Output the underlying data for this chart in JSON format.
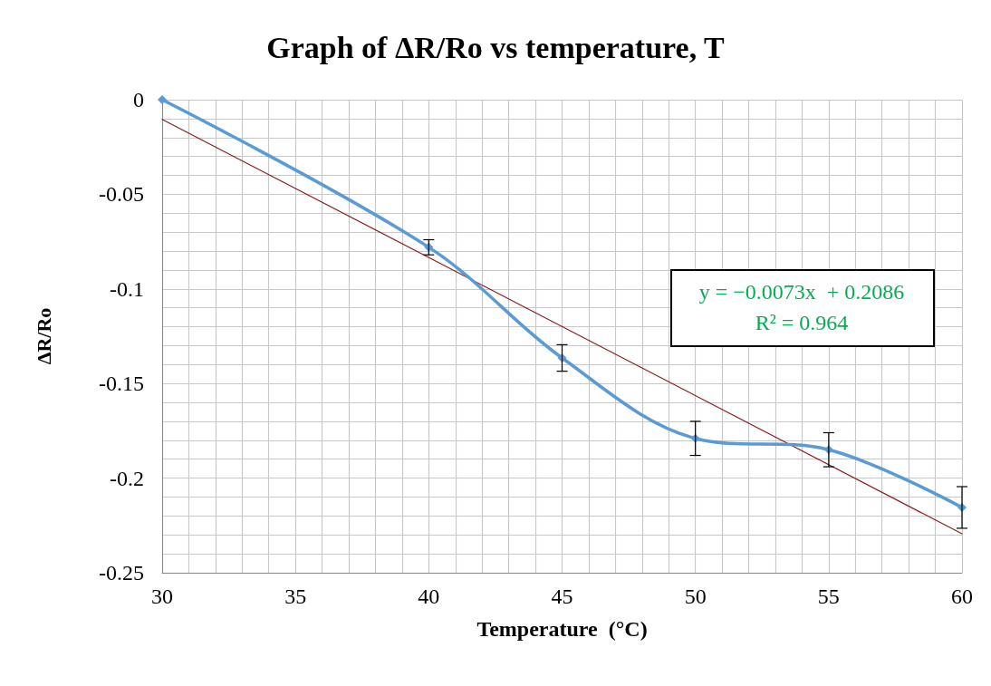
{
  "chart_data": {
    "type": "line",
    "title": "Graph of ΔR/Ro vs temperature, T",
    "xlabel": "Temperature  (°C)",
    "ylabel": "ΔR/Ro",
    "annotations": [
      "y = −0.0073x  + 0.2086",
      "R² = 0.964"
    ],
    "series": [
      {
        "color": "#5b9bd5",
        "x": [
          30,
          40,
          45,
          50,
          55,
          60
        ],
        "values": [
          0,
          -0.078,
          -0.1365,
          -0.179,
          -0.185,
          -0.2155
        ],
        "errors": [
          null,
          0.004,
          0.007,
          0.009,
          0.009,
          0.011
        ],
        "marker": "diamond"
      },
      {
        "type": "line",
        "color": "#8b1a1a",
        "x": [
          30,
          60
        ],
        "values": [
          -0.0104,
          -0.2294
        ],
        "marker": "none"
      }
    ],
    "xlim": [
      30,
      60
    ],
    "xticks": [
      30,
      {
        "value": 31,
        "label": null
      },
      {
        "value": 32,
        "label": null
      },
      {
        "value": 33,
        "label": null
      },
      {
        "value": 34,
        "label": null
      },
      35,
      {
        "value": 36,
        "label": null
      },
      {
        "value": 37,
        "label": null
      },
      {
        "value": 38,
        "label": null
      },
      {
        "value": 39,
        "label": null
      },
      40,
      {
        "value": 41,
        "label": null
      },
      {
        "value": 42,
        "label": null
      },
      {
        "value": 43,
        "label": null
      },
      {
        "value": 44,
        "label": null
      },
      45,
      {
        "value": 46,
        "label": null
      },
      {
        "value": 47,
        "label": null
      },
      {
        "value": 48,
        "label": null
      },
      {
        "value": 49,
        "label": null
      },
      50,
      {
        "value": 51,
        "label": null
      },
      {
        "value": 52,
        "label": null
      },
      {
        "value": 53,
        "label": null
      },
      {
        "value": 54,
        "label": null
      },
      55,
      {
        "value": 56,
        "label": null
      },
      {
        "value": 57,
        "label": null
      },
      {
        "value": 58,
        "label": null
      },
      {
        "value": 59,
        "label": null
      },
      60
    ],
    "ylim": [
      -0.25,
      0
    ],
    "yticks": [
      -0.25,
      {
        "value": -0.24,
        "label": null
      },
      {
        "value": -0.23,
        "label": null
      },
      {
        "value": -0.22,
        "label": null
      },
      {
        "value": -0.21,
        "label": null
      },
      -0.2,
      {
        "value": -0.19,
        "label": null
      },
      {
        "value": -0.18,
        "label": null
      },
      {
        "value": -0.17,
        "label": null
      },
      {
        "value": -0.16,
        "label": null
      },
      -0.15,
      {
        "value": -0.14,
        "label": null
      },
      {
        "value": -0.13,
        "label": null
      },
      {
        "value": -0.12,
        "label": null
      },
      {
        "value": -0.11,
        "label": null
      },
      -0.1,
      {
        "value": -0.09,
        "label": null
      },
      {
        "value": -0.08,
        "label": null
      },
      {
        "value": -0.07,
        "label": null
      },
      {
        "value": -0.06,
        "label": null
      },
      -0.05,
      {
        "value": -0.04,
        "label": null
      },
      {
        "value": -0.03,
        "label": null
      },
      {
        "value": -0.02,
        "label": null
      },
      {
        "value": -0.01,
        "label": null
      },
      0
    ],
    "grid": true,
    "line_style": "solid"
  }
}
